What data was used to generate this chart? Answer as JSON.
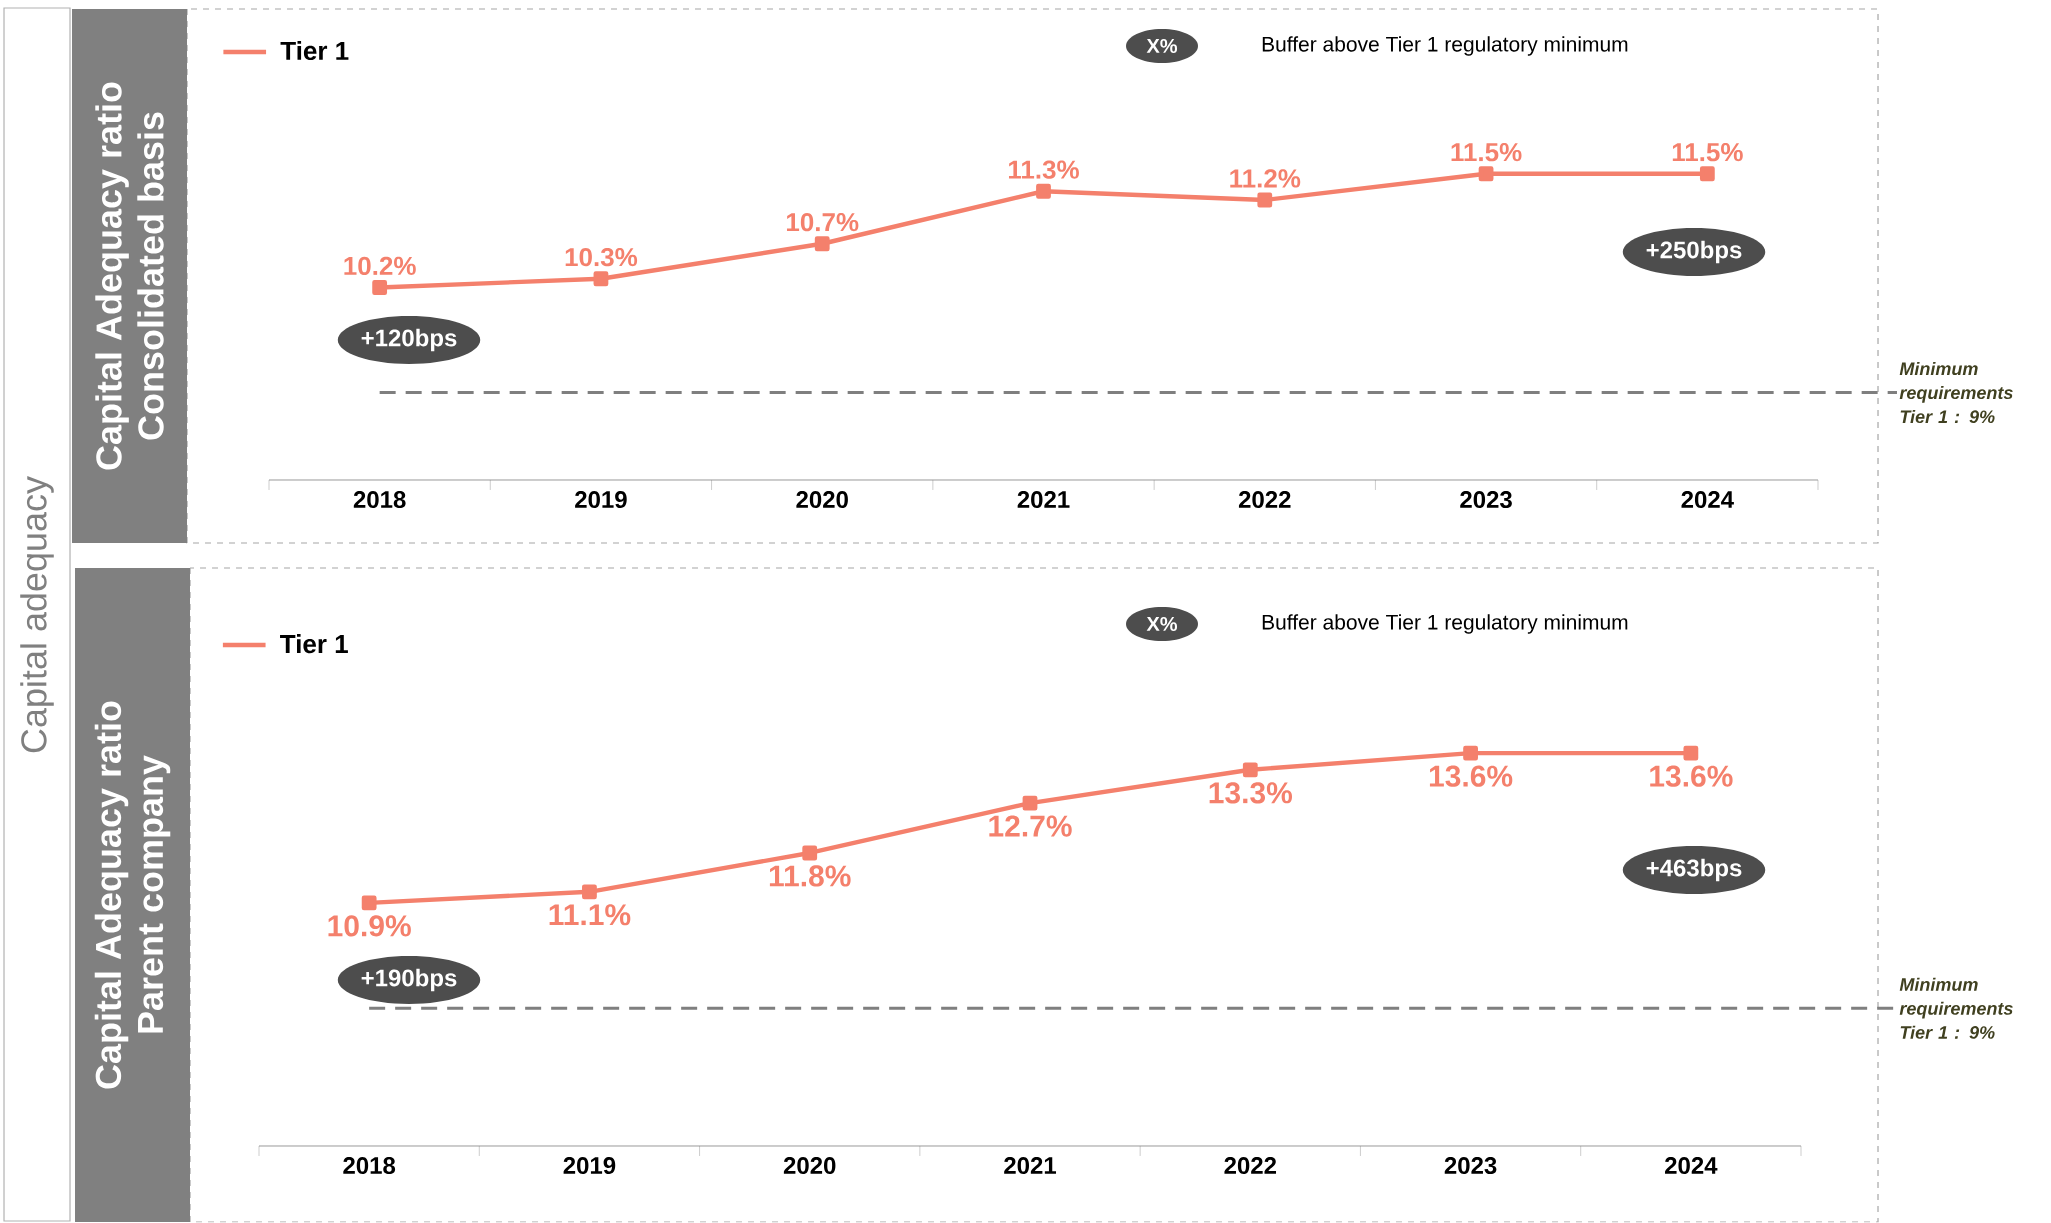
{
  "chart_data": [
    {
      "type": "line",
      "title": "Capital Adequacy ratio",
      "subtitle": "Consolidated basis",
      "categories": [
        "2018",
        "2019",
        "2020",
        "2021",
        "2022",
        "2023",
        "2024"
      ],
      "series": [
        {
          "name": "Tier 1",
          "color": "#f4806c",
          "values": [
            10.2,
            10.3,
            10.7,
            11.3,
            11.2,
            11.5,
            11.5
          ],
          "value_labels": [
            "10.2%",
            "10.3%",
            "10.7%",
            "11.3%",
            "11.2%",
            "11.5%",
            "11.5%"
          ]
        }
      ],
      "tick_labels": "x",
      "legend": "top left",
      "marker": "square",
      "line_style": "solid",
      "ref_lines": [
        {
          "axis": "y",
          "value": 9,
          "label": "Minimum requirements Tier 1 : 9%",
          "color": "#7f7f7f",
          "line_style": "dashed"
        }
      ],
      "annotations": [
        "X%",
        "Buffer above Tier 1 regulatory minimum",
        "+120bps",
        "+250bps",
        "Capital adequacy"
      ]
    },
    {
      "type": "line",
      "title": "Capital Adequacy ratio",
      "subtitle": "Parent company",
      "categories": [
        "2018",
        "2019",
        "2020",
        "2021",
        "2022",
        "2023",
        "2024"
      ],
      "series": [
        {
          "name": "Tier 1",
          "color": "#f4806c",
          "values": [
            10.9,
            11.1,
            11.8,
            12.7,
            13.3,
            13.6,
            13.6
          ],
          "value_labels": [
            "10.9%",
            "11.1%",
            "11.8%",
            "12.7%",
            "13.3%",
            "13.6%",
            "13.6%"
          ]
        }
      ],
      "tick_labels": "x",
      "legend": "top left",
      "marker": "square",
      "line_style": "solid",
      "ref_lines": [
        {
          "axis": "y",
          "value": 9,
          "label": "Minimum requirements Tier 1 : 9%",
          "color": "#7f7f7f",
          "line_style": "dashed"
        }
      ],
      "annotations": [
        "X%",
        "Buffer above Tier 1 regulatory minimum",
        "+190bps",
        "+463bps"
      ]
    }
  ]
}
